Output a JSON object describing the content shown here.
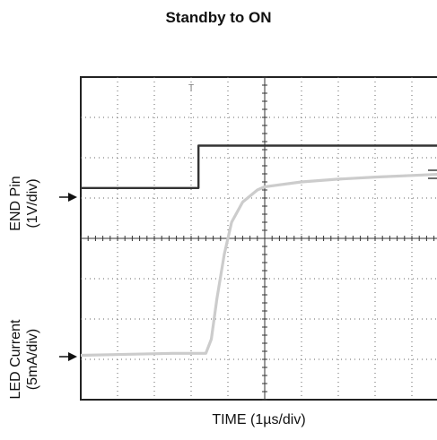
{
  "chart_data": {
    "type": "line",
    "title": "Standby to ON",
    "xlabel": "TIME (1µs/div)",
    "ylabels": [
      {
        "line1": "END Pin",
        "line2": "(1V/div)"
      },
      {
        "line1": "LED Current",
        "line2": "(5mA/div)"
      }
    ],
    "grid": true,
    "x_divisions": 10,
    "y_divisions": 8,
    "xlim": [
      0,
      10
    ],
    "ylim": [
      0,
      8
    ],
    "trigger_marker": "T",
    "series": [
      {
        "color": "#333333",
        "x": [
          0,
          3.2,
          3.2,
          10
        ],
        "y": [
          5.25,
          5.25,
          6.3,
          6.3
        ]
      },
      {
        "color": "#cccccc",
        "x": [
          0,
          2.5,
          3.4,
          3.55,
          3.7,
          3.9,
          4.1,
          4.4,
          4.8,
          5.0,
          6.0,
          7.0,
          8.0,
          9.0,
          10.0
        ],
        "y": [
          1.1,
          1.15,
          1.15,
          1.5,
          2.5,
          3.6,
          4.4,
          4.9,
          5.2,
          5.28,
          5.4,
          5.47,
          5.52,
          5.56,
          5.6
        ]
      }
    ]
  }
}
